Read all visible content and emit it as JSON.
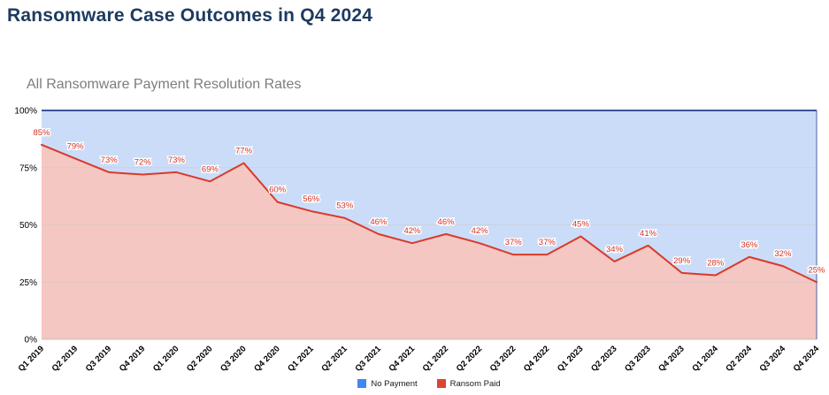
{
  "header": {
    "title": "Ransomware Case Outcomes in Q4 2024"
  },
  "colors": {
    "title_text": "#1d3a5f",
    "subtitle_text": "#7d7d7d",
    "blue_fill": "#cbdcf9",
    "pink_fill": "#f5c7c2",
    "line_red": "#d93a2b",
    "label_red": "#d33426",
    "top_border": "#3b5398",
    "grid": "#c9c9c9",
    "axis_text": "#000000",
    "legend_blue": "#4285f4",
    "legend_red": "#db4437"
  },
  "chart_data": {
    "type": "area",
    "stacked": true,
    "title": "All Ransomware Payment Resolution Rates",
    "xlabel": "",
    "ylabel": "",
    "ylim": [
      0,
      100
    ],
    "yticks": [
      "0%",
      "25%",
      "50%",
      "75%",
      "100%"
    ],
    "grid": true,
    "legend_position": "bottom",
    "categories": [
      "Q1 2019",
      "Q2 2019",
      "Q3 2019",
      "Q4 2019",
      "Q1 2020",
      "Q2 2020",
      "Q3 2020",
      "Q4 2020",
      "Q1 2021",
      "Q2 2021",
      "Q3 2021",
      "Q4 2021",
      "Q1 2022",
      "Q2 2022",
      "Q3 2022",
      "Q4 2022",
      "Q1 2023",
      "Q2 2023",
      "Q3 2023",
      "Q4 2023",
      "Q1 2024",
      "Q2 2024",
      "Q3 2024",
      "Q4 2024"
    ],
    "series": [
      {
        "name": "Ransom Paid",
        "color": "#db4437",
        "values": [
          85,
          79,
          73,
          72,
          73,
          69,
          77,
          60,
          56,
          53,
          46,
          42,
          46,
          42,
          37,
          37,
          45,
          34,
          41,
          29,
          28,
          36,
          32,
          25
        ],
        "point_labels": [
          "85%",
          "79%",
          "73%",
          "72%",
          "73%",
          "69%",
          "77%",
          "60%",
          "56%",
          "53%",
          "46%",
          "42%",
          "46%",
          "42%",
          "37%",
          "37%",
          "45%",
          "34%",
          "41%",
          "29%",
          "28%",
          "36%",
          "32%",
          "25%"
        ]
      },
      {
        "name": "No Payment",
        "color": "#4285f4",
        "values": [
          15,
          21,
          27,
          28,
          27,
          31,
          23,
          40,
          44,
          47,
          54,
          58,
          54,
          58,
          63,
          63,
          55,
          66,
          59,
          71,
          72,
          64,
          68,
          75
        ],
        "note_visible_labels": "none"
      }
    ]
  },
  "legend": {
    "items": [
      {
        "label": "No Payment",
        "color": "#4285f4"
      },
      {
        "label": "Ransom Paid",
        "color": "#db4437"
      }
    ]
  }
}
